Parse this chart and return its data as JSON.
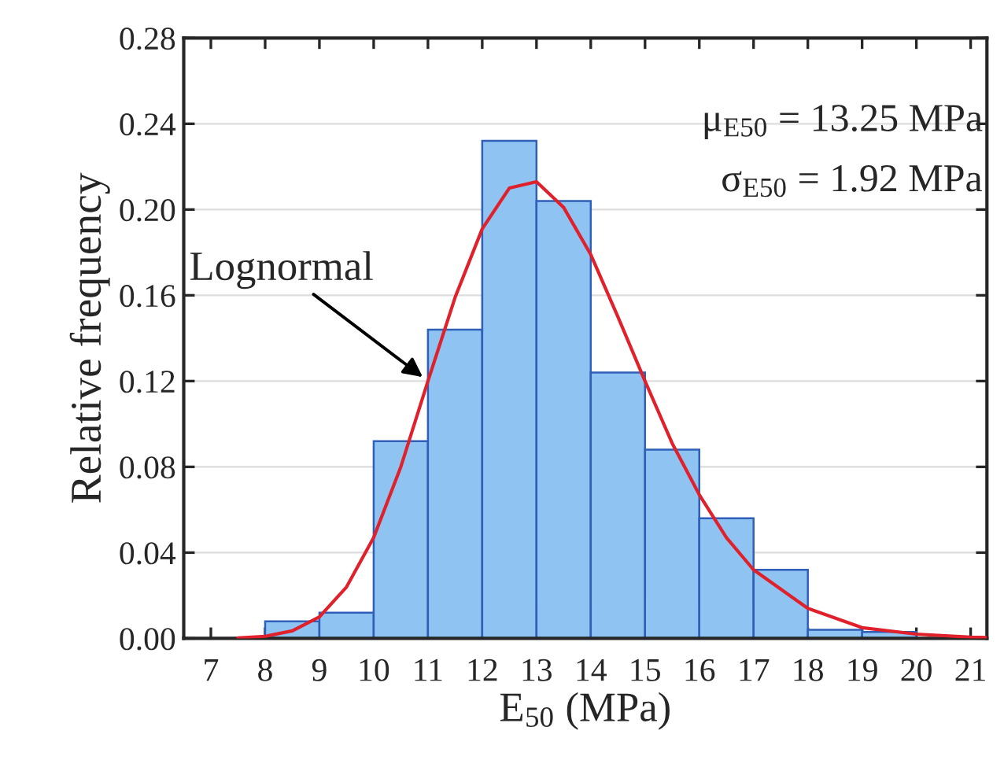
{
  "chart_data": {
    "type": "histogram",
    "xlabel": "E$_{50}$ (MPa)",
    "ylabel": "Relative frequency",
    "series": [
      {
        "color": "#8ec3f2",
        "bins": [
          8,
          9,
          10,
          11,
          12,
          13,
          14,
          15,
          16,
          17,
          18,
          19,
          20
        ],
        "values": [
          0.008,
          0.012,
          0.092,
          0.144,
          0.232,
          0.204,
          0.124,
          0.088,
          0.056,
          0.032,
          0.004,
          0.003
        ]
      },
      {
        "type": "line",
        "name": "Lognormal",
        "color": "#e0202a",
        "x": [
          7.5,
          8,
          8.5,
          9,
          9.5,
          10,
          10.5,
          11,
          11.5,
          12,
          12.5,
          13,
          13.5,
          14,
          14.5,
          15,
          15.5,
          16,
          16.5,
          17,
          18,
          19,
          20,
          21,
          21.3
        ],
        "values": [
          0.0002,
          0.001,
          0.0035,
          0.01,
          0.024,
          0.047,
          0.08,
          0.12,
          0.159,
          0.191,
          0.21,
          0.213,
          0.201,
          0.179,
          0.15,
          0.12,
          0.091,
          0.067,
          0.047,
          0.032,
          0.014,
          0.005,
          0.002,
          0.0006,
          0.0004
        ]
      }
    ],
    "annotations": [
      "μ$_{E50}$ = 13.25 MPa",
      "σ$_{E50}$ = 1.92 MPa"
    ],
    "xlim": [
      6.5,
      21.3
    ],
    "xticks": [
      7,
      8,
      9,
      10,
      11,
      12,
      13,
      14,
      15,
      16,
      17,
      18,
      19,
      20,
      21
    ],
    "ylim": [
      0,
      0.28
    ],
    "yticks": [
      {
        "value": 0,
        "label": "0.00"
      },
      {
        "value": 0.04,
        "label": "0.04"
      },
      {
        "value": 0.08,
        "label": "0.08"
      },
      {
        "value": 0.12,
        "label": "0.12"
      },
      {
        "value": 0.16,
        "label": "0.16"
      },
      {
        "value": 0.2,
        "label": "0.20"
      },
      {
        "value": 0.24,
        "label": "0.24"
      },
      {
        "value": 0.28,
        "label": "0.28"
      }
    ],
    "grid": "y"
  }
}
